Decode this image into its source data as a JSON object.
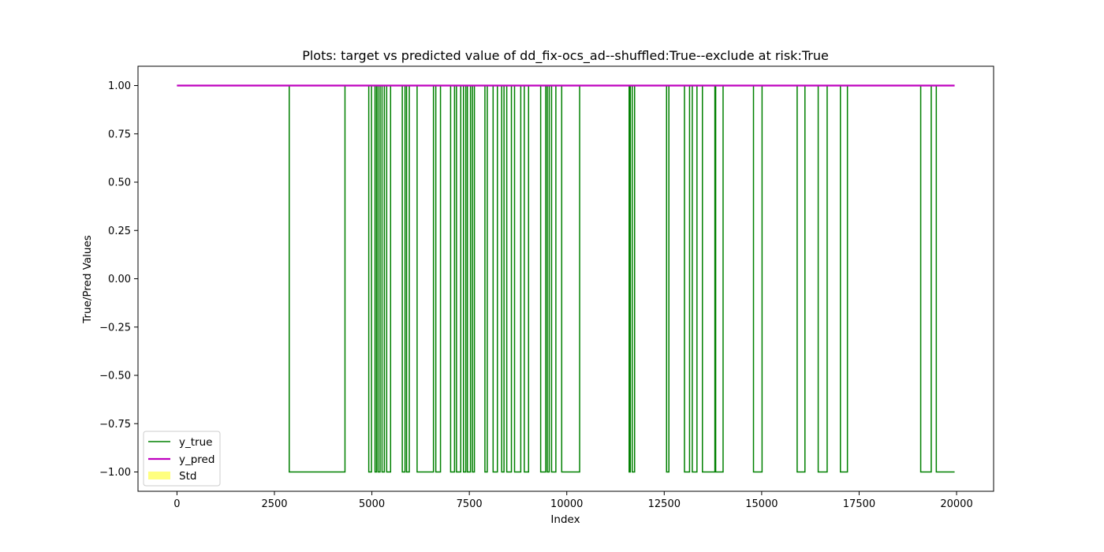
{
  "chart_data": {
    "type": "line",
    "title": "Plots: target vs predicted value of dd_fix-ocs_ad--shuffled:True--exclude at risk:True",
    "xlabel": "Index",
    "ylabel": "True/Pred Values",
    "xlim": [
      -1000,
      20950
    ],
    "ylim": [
      -1.1,
      1.1
    ],
    "xticks": [
      0,
      2500,
      5000,
      7500,
      10000,
      12500,
      15000,
      17500,
      20000
    ],
    "xtick_labels": [
      "0",
      "2500",
      "5000",
      "7500",
      "10000",
      "12500",
      "15000",
      "17500",
      "20000"
    ],
    "yticks": [
      1.0,
      0.75,
      0.5,
      0.25,
      0.0,
      -0.25,
      -0.5,
      -0.75,
      -1.0
    ],
    "ytick_labels": [
      "1.00",
      "0.75",
      "0.50",
      "0.25",
      "0.00",
      "−0.25",
      "−0.50",
      "−0.75",
      "−1.00"
    ],
    "grid": false,
    "legend_position": "lower-left",
    "series": [
      {
        "name": "y_true",
        "color": "#008000",
        "style": "step",
        "x_start": 0,
        "x_end": 19950,
        "initial_value": 1,
        "low_intervals": [
          [
            2880,
            4310
          ],
          [
            4920,
            4990
          ],
          [
            5080,
            5120
          ],
          [
            5160,
            5210
          ],
          [
            5260,
            5320
          ],
          [
            5380,
            5480
          ],
          [
            5780,
            5850
          ],
          [
            5890,
            5960
          ],
          [
            6160,
            6580
          ],
          [
            6640,
            6760
          ],
          [
            7020,
            7120
          ],
          [
            7170,
            7280
          ],
          [
            7350,
            7410
          ],
          [
            7450,
            7530
          ],
          [
            7580,
            7630
          ],
          [
            7900,
            7960
          ],
          [
            8110,
            8220
          ],
          [
            8330,
            8390
          ],
          [
            8460,
            8580
          ],
          [
            8660,
            8820
          ],
          [
            8910,
            9020
          ],
          [
            9330,
            9460
          ],
          [
            9500,
            9550
          ],
          [
            9610,
            9720
          ],
          [
            9870,
            10330
          ],
          [
            11600,
            11630
          ],
          [
            11680,
            11740
          ],
          [
            12560,
            12620
          ],
          [
            13020,
            13150
          ],
          [
            13220,
            13340
          ],
          [
            13480,
            13800
          ],
          [
            13820,
            14010
          ],
          [
            14790,
            15010
          ],
          [
            15910,
            16110
          ],
          [
            16450,
            16680
          ],
          [
            17020,
            17200
          ],
          [
            19080,
            19350
          ],
          [
            19480,
            19950
          ]
        ]
      },
      {
        "name": "y_pred",
        "color": "#bf00bf",
        "style": "line",
        "x": [
          0,
          19950
        ],
        "values": [
          1.0,
          1.0
        ]
      },
      {
        "name": "Std",
        "color": "#ffff7f",
        "style": "band",
        "x": [
          0,
          19950
        ],
        "lower": [
          1.0,
          1.0
        ],
        "upper": [
          1.0,
          1.0
        ]
      }
    ]
  }
}
